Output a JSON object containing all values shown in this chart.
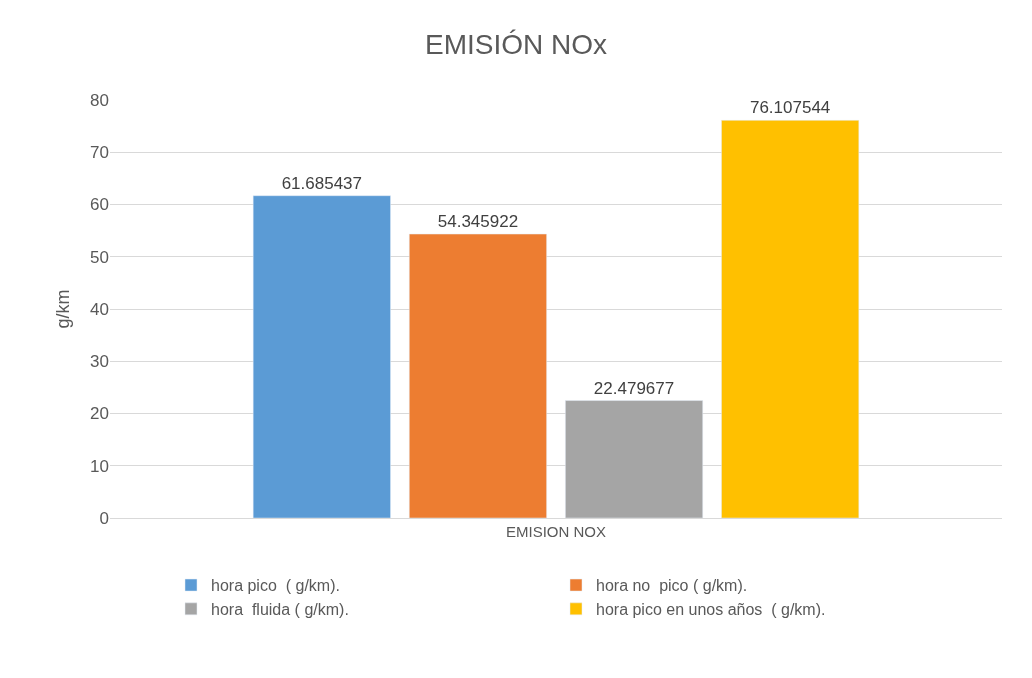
{
  "chart_data": {
    "type": "bar",
    "title": "EMISIÓN NOx",
    "ylabel": "g/km",
    "categories": [
      "EMISION NOX"
    ],
    "series": [
      {
        "name": "hora pico  ( g/km).",
        "color": "#5b9bd5",
        "values": [
          61.685437
        ]
      },
      {
        "name": "hora no  pico ( g/km).",
        "color": "#ed7d31",
        "values": [
          54.345922
        ]
      },
      {
        "name": "hora  fluida ( g/km).",
        "color": "#a5a5a5",
        "values": [
          22.479677
        ]
      },
      {
        "name": "hora pico en unos años  ( g/km).",
        "color": "#ffc000",
        "values": [
          76.107544
        ]
      }
    ],
    "ylim": [
      0,
      80
    ],
    "yticks": [
      0,
      10,
      20,
      30,
      40,
      50,
      60,
      70,
      80
    ],
    "grid": "y",
    "legend": "bottom",
    "data_labels": true
  }
}
